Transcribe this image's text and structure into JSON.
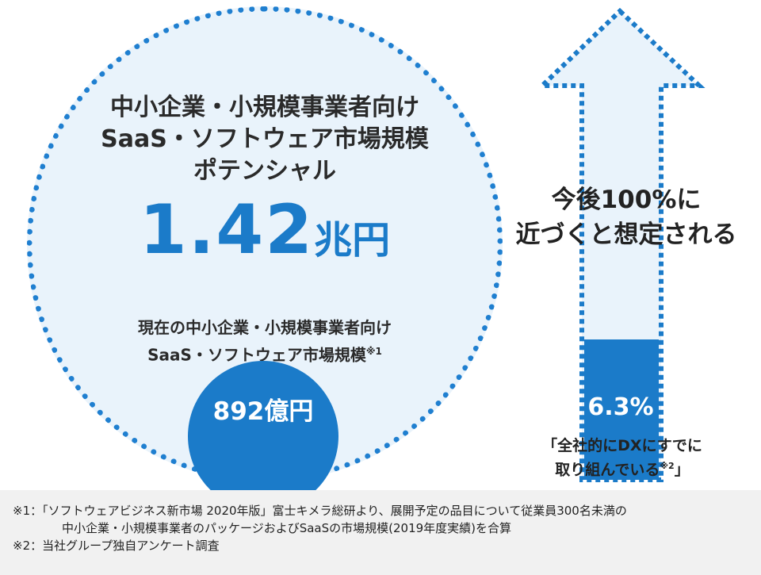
{
  "left": {
    "title_lines": [
      "中小企業・小規模事業者向け",
      "SaaS・ソフトウェア市場規模",
      "ポテンシャル"
    ],
    "potential_number": "1.42",
    "potential_unit": "兆円",
    "current_label_lines": [
      "現在の中小企業・小規模事業者向け",
      "SaaS・ソフトウェア市場規模"
    ],
    "current_label_note_mark": "※1",
    "current_value": "892億円"
  },
  "right": {
    "arrow_text_lines": [
      "今後100%に",
      "近づくと想定される"
    ],
    "current_percent": "6.3%",
    "current_percent_value": 6.3,
    "quote_lines": [
      "「全社的にDXにすでに",
      "取り組んでいる"
    ],
    "quote_note_mark": "※2",
    "quote_close": "」"
  },
  "footnotes": [
    "※1：「ソフトウェアビジネス新市場 2020年版」富士キメラ総研より、展開予定の品目について従業員300名未満の",
    "中小企業・小規模事業者のパッケージおよびSaaSの市場規模(2019年度実績)を合算",
    "※2：当社グループ独自アンケート調査"
  ],
  "colors": {
    "accent": "#1b7bc9",
    "light_fill": "#e9f3fb",
    "footer_bg": "#f1f1f1"
  }
}
